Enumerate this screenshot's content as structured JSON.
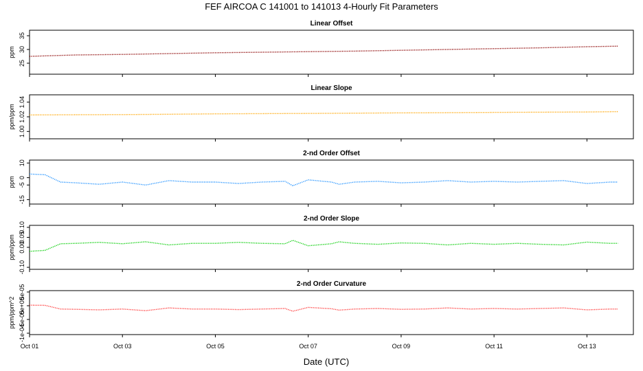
{
  "chart_data": {
    "type": "line",
    "title": "FEF   AIRCOA C   141001 to 141013   4-Hourly Fit Parameters",
    "xlabel": "Date (UTC)",
    "x_range": [
      "2014-10-01",
      "2014-10-14"
    ],
    "x_ticks": [
      {
        "date": "2014-10-01",
        "label": "Oct 01"
      },
      {
        "date": "2014-10-03",
        "label": "Oct 03"
      },
      {
        "date": "2014-10-05",
        "label": "Oct 05"
      },
      {
        "date": "2014-10-07",
        "label": "Oct 07"
      },
      {
        "date": "2014-10-09",
        "label": "Oct 09"
      },
      {
        "date": "2014-10-11",
        "label": "Oct 11"
      },
      {
        "date": "2014-10-13",
        "label": "Oct 13"
      }
    ],
    "panels": [
      {
        "title": "Linear Offset",
        "ylabel": "ppm",
        "color": "#8b0000",
        "ylim": [
          21,
          37
        ],
        "y_ticks": [
          {
            "v": 25,
            "label": "25"
          },
          {
            "v": 30,
            "label": "30"
          },
          {
            "v": 35,
            "label": "35"
          }
        ],
        "series": {
          "x": [
            "2014-10-01",
            "2014-10-02",
            "2014-10-03",
            "2014-10-04",
            "2014-10-05",
            "2014-10-06",
            "2014-10-07",
            "2014-10-08",
            "2014-10-09",
            "2014-10-10",
            "2014-10-11",
            "2014-10-12",
            "2014-10-13",
            "2014-10-13 16:00"
          ],
          "y": [
            27.5,
            28.0,
            28.2,
            28.5,
            28.8,
            29.0,
            29.2,
            29.4,
            29.7,
            30.0,
            30.3,
            30.6,
            31.0,
            31.2
          ]
        }
      },
      {
        "title": "Linear Slope",
        "ylabel": "ppm/ppm",
        "color": "#ffa500",
        "ylim": [
          0.99,
          1.05
        ],
        "y_ticks": [
          {
            "v": 1.0,
            "label": "1.00"
          },
          {
            "v": 1.02,
            "label": "1.02"
          },
          {
            "v": 1.04,
            "label": "1.04"
          }
        ],
        "series": {
          "x": [
            "2014-10-01",
            "2014-10-02",
            "2014-10-03",
            "2014-10-04",
            "2014-10-05",
            "2014-10-06",
            "2014-10-07",
            "2014-10-08",
            "2014-10-09",
            "2014-10-10",
            "2014-10-11",
            "2014-10-12",
            "2014-10-13",
            "2014-10-13 16:00"
          ],
          "y": [
            1.0225,
            1.0228,
            1.023,
            1.0235,
            1.024,
            1.0243,
            1.0246,
            1.025,
            1.0253,
            1.0256,
            1.026,
            1.0263,
            1.0266,
            1.027
          ]
        }
      },
      {
        "title": "2-nd Order Offset",
        "ylabel": "ppm",
        "color": "#1e90ff",
        "ylim": [
          -18,
          12
        ],
        "y_ticks": [
          {
            "v": -15,
            "label": "-15"
          },
          {
            "v": -5,
            "label": "-5"
          },
          {
            "v": 0,
            "label": "0"
          },
          {
            "v": 10,
            "label": "10"
          }
        ],
        "series": {
          "x": [
            "2014-10-01",
            "2014-10-01 08:00",
            "2014-10-01 16:00",
            "2014-10-02",
            "2014-10-02 12:00",
            "2014-10-03",
            "2014-10-03 12:00",
            "2014-10-04",
            "2014-10-04 12:00",
            "2014-10-05",
            "2014-10-05 12:00",
            "2014-10-06",
            "2014-10-06 12:00",
            "2014-10-06 16:00",
            "2014-10-07",
            "2014-10-07 12:00",
            "2014-10-07 16:00",
            "2014-10-08",
            "2014-10-08 12:00",
            "2014-10-09",
            "2014-10-09 12:00",
            "2014-10-10",
            "2014-10-10 12:00",
            "2014-10-11",
            "2014-10-11 12:00",
            "2014-10-12",
            "2014-10-12 12:00",
            "2014-10-13",
            "2014-10-13 12:00",
            "2014-10-13 16:00"
          ],
          "y": [
            2.5,
            2.0,
            -3.0,
            -3.5,
            -4.5,
            -3.0,
            -5.0,
            -2.0,
            -3.0,
            -3.0,
            -4.0,
            -3.0,
            -2.5,
            -5.5,
            -1.5,
            -3.0,
            -4.5,
            -3.0,
            -2.5,
            -3.5,
            -3.0,
            -2.0,
            -3.0,
            -2.5,
            -3.0,
            -2.5,
            -2.0,
            -4.0,
            -3.0,
            -3.0
          ]
        }
      },
      {
        "title": "2-nd Order Slope",
        "ylabel": "ppm/ppm",
        "color": "#00cc00",
        "ylim": [
          -0.11,
          0.11
        ],
        "y_ticks": [
          {
            "v": -0.1,
            "label": "-0.10"
          },
          {
            "v": 0.0,
            "label": "0.00"
          },
          {
            "v": 0.05,
            "label": "0.05"
          },
          {
            "v": 0.1,
            "label": "0.10"
          }
        ],
        "series": {
          "x": [
            "2014-10-01",
            "2014-10-01 08:00",
            "2014-10-01 16:00",
            "2014-10-02",
            "2014-10-02 12:00",
            "2014-10-03",
            "2014-10-03 12:00",
            "2014-10-04",
            "2014-10-04 12:00",
            "2014-10-05",
            "2014-10-05 12:00",
            "2014-10-06",
            "2014-10-06 12:00",
            "2014-10-06 16:00",
            "2014-10-07",
            "2014-10-07 12:00",
            "2014-10-07 16:00",
            "2014-10-08",
            "2014-10-08 12:00",
            "2014-10-09",
            "2014-10-09 12:00",
            "2014-10-10",
            "2014-10-10 12:00",
            "2014-10-11",
            "2014-10-11 12:00",
            "2014-10-12",
            "2014-10-12 12:00",
            "2014-10-13",
            "2014-10-13 12:00",
            "2014-10-13 16:00"
          ],
          "y": [
            -0.02,
            -0.015,
            0.018,
            0.02,
            0.025,
            0.018,
            0.028,
            0.012,
            0.02,
            0.02,
            0.025,
            0.02,
            0.018,
            0.035,
            0.008,
            0.018,
            0.028,
            0.02,
            0.015,
            0.022,
            0.02,
            0.012,
            0.02,
            0.015,
            0.02,
            0.015,
            0.012,
            0.026,
            0.02,
            0.02
          ]
        }
      },
      {
        "title": "2-nd Order Curvature",
        "ylabel": "ppm/ppm^2",
        "color": "#ff3333",
        "ylim": [
          -0.000105,
          5.5e-05
        ],
        "y_ticks": [
          {
            "v": -0.0001,
            "label": "-1e-04"
          },
          {
            "v": -5e-05,
            "label": "-5e-05"
          },
          {
            "v": 0.0,
            "label": "0e+00"
          },
          {
            "v": 5e-05,
            "label": "5e-05"
          }
        ],
        "series": {
          "x": [
            "2014-10-01",
            "2014-10-01 08:00",
            "2014-10-01 16:00",
            "2014-10-02",
            "2014-10-02 12:00",
            "2014-10-03",
            "2014-10-03 12:00",
            "2014-10-04",
            "2014-10-04 12:00",
            "2014-10-05",
            "2014-10-05 12:00",
            "2014-10-06",
            "2014-10-06 12:00",
            "2014-10-06 16:00",
            "2014-10-07",
            "2014-10-07 12:00",
            "2014-10-07 16:00",
            "2014-10-08",
            "2014-10-08 12:00",
            "2014-10-09",
            "2014-10-09 12:00",
            "2014-10-10",
            "2014-10-10 12:00",
            "2014-10-11",
            "2014-10-11 12:00",
            "2014-10-12",
            "2014-10-12 12:00",
            "2014-10-13",
            "2014-10-13 12:00",
            "2014-10-13 16:00"
          ],
          "y": [
            2e-06,
            1.5e-06,
            -1.2e-05,
            -1.3e-05,
            -1.5e-05,
            -1.2e-05,
            -1.8e-05,
            -8e-06,
            -1.2e-05,
            -1.2e-05,
            -1.4e-05,
            -1.2e-05,
            -1e-05,
            -2e-05,
            -6e-06,
            -1.1e-05,
            -1.6e-05,
            -1.2e-05,
            -1e-05,
            -1.3e-05,
            -1.2e-05,
            -8e-06,
            -1.2e-05,
            -1e-05,
            -1.2e-05,
            -1e-05,
            -8e-06,
            -1.5e-05,
            -1.2e-05,
            -1.2e-05
          ]
        }
      }
    ]
  }
}
